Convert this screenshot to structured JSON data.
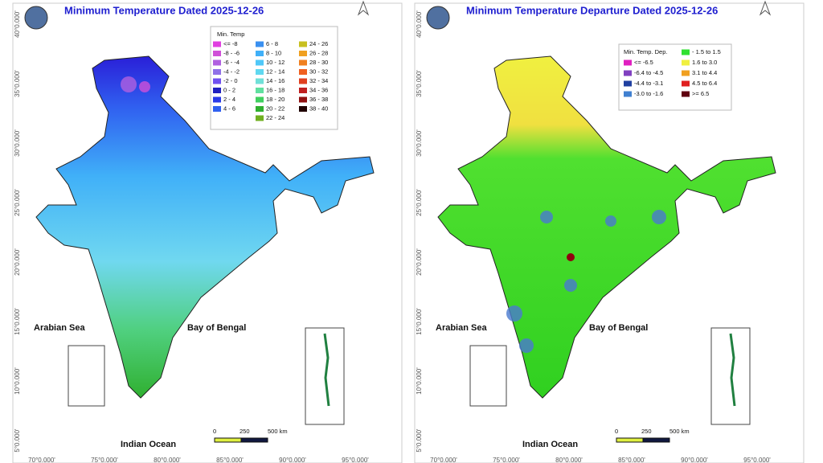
{
  "panels": [
    {
      "title": "Minimum Temperature Dated 2025-12-26",
      "legend": {
        "title": "Min. Temp",
        "columns": [
          [
            {
              "label": "<= -8",
              "color": "#e040e0"
            },
            {
              "label": "-8 - -6",
              "color": "#d050d8"
            },
            {
              "label": "-6 - -4",
              "color": "#b060e0"
            },
            {
              "label": "-4 - -2",
              "color": "#9070e8"
            },
            {
              "label": "-2 - 0",
              "color": "#7050f0"
            },
            {
              "label": "0 - 2",
              "color": "#2020c0"
            },
            {
              "label": "2 - 4",
              "color": "#2a3ae8"
            },
            {
              "label": "4 - 6",
              "color": "#3060f0"
            }
          ],
          [
            {
              "label": "6 - 8",
              "color": "#3a90f0"
            },
            {
              "label": "8 - 10",
              "color": "#40b0f8"
            },
            {
              "label": "10 - 12",
              "color": "#50c8f8"
            },
            {
              "label": "12 - 14",
              "color": "#60d8f0"
            },
            {
              "label": "14 - 16",
              "color": "#70e0d8"
            },
            {
              "label": "16 - 18",
              "color": "#60e0a0"
            },
            {
              "label": "18 - 20",
              "color": "#40d060"
            },
            {
              "label": "20 - 22",
              "color": "#30b030"
            },
            {
              "label": "22 - 24",
              "color": "#70b020"
            }
          ],
          [
            {
              "label": "24 - 26",
              "color": "#c8c020"
            },
            {
              "label": "26 - 28",
              "color": "#f0a020"
            },
            {
              "label": "28 - 30",
              "color": "#f08020"
            },
            {
              "label": "30 - 32",
              "color": "#f06020"
            },
            {
              "label": "32 - 34",
              "color": "#e04020"
            },
            {
              "label": "34 - 36",
              "color": "#c02020"
            },
            {
              "label": "36 - 38",
              "color": "#901010"
            },
            {
              "label": "38 - 40",
              "color": "#200000"
            }
          ]
        ]
      },
      "seas": [
        "Arabian Sea",
        "Bay of Bengal",
        "Indian Ocean"
      ],
      "scale": [
        "0",
        "250",
        "500 km"
      ],
      "lat_labels": [
        "40°0.000'",
        "35°0.000'",
        "30°0.000'",
        "25°0.000'",
        "20°0.000'",
        "15°0.000'",
        "10°0.000'",
        "5°0.000'"
      ],
      "lon_labels": [
        "70°0.000'",
        "75°0.000'",
        "80°0.000'",
        "85°0.000'",
        "90°0.000'",
        "95°0.000'"
      ]
    },
    {
      "title": "Minimum Temperature Departure Dated 2025-12-26",
      "legend": {
        "title": "Min. Temp. Dep.",
        "columns": [
          [
            {
              "label": "<= -6.5",
              "color": "#e020c0"
            },
            {
              "label": "-6.4 to -4.5",
              "color": "#8040c0"
            },
            {
              "label": "-4.4 to -3.1",
              "color": "#2040a0"
            },
            {
              "label": "-3.0 to -1.6",
              "color": "#4080d0"
            }
          ],
          [
            {
              "label": "- 1.5 to 1.5",
              "color": "#30e030"
            },
            {
              "label": "1.6 to  3.0",
              "color": "#f0f040"
            },
            {
              "label": "3.1 to 4.4",
              "color": "#f0a020"
            },
            {
              "label": "4.5 to 6.4",
              "color": "#e02020"
            },
            {
              "label": ">= 6.5",
              "color": "#600010"
            }
          ]
        ]
      },
      "seas": [
        "Arabian Sea",
        "Bay of Bengal",
        "Indian Ocean"
      ],
      "scale": [
        "0",
        "250",
        "500 km"
      ],
      "lat_labels": [
        "40°0.000'",
        "35°0.000'",
        "30°0.000'",
        "25°0.000'",
        "20°0.000'",
        "15°0.000'",
        "10°0.000'",
        "5°0.000'"
      ],
      "lon_labels": [
        "70°0.000'",
        "75°0.000'",
        "80°0.000'",
        "85°0.000'",
        "90°0.000'",
        "95°0.000'"
      ]
    }
  ]
}
